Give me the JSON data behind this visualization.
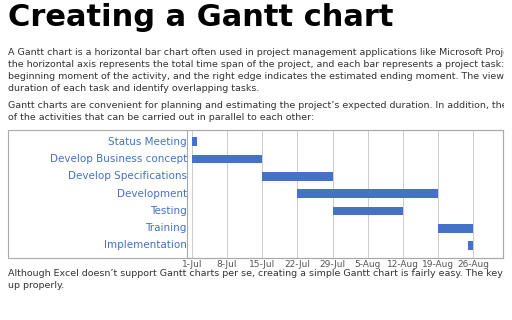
{
  "title": "Creating a Gantt chart",
  "title_fontsize": 22,
  "tasks": [
    "Status Meeting",
    "Develop Business concept",
    "Develop Specifications",
    "Development",
    "Testing",
    "Training",
    "Implementation"
  ],
  "start_days": [
    0,
    0,
    14,
    21,
    28,
    49,
    55
  ],
  "durations": [
    1,
    14,
    14,
    28,
    14,
    7,
    1
  ],
  "bar_color": "#4472C4",
  "bar_height": 0.5,
  "x_tick_labels": [
    "1-Jul",
    "8-Jul",
    "15-Jul",
    "22-Jul",
    "29-Jul",
    "5-Aug",
    "12-Aug",
    "19-Aug",
    "26-Aug"
  ],
  "x_tick_positions": [
    0,
    7,
    14,
    21,
    28,
    35,
    42,
    49,
    56
  ],
  "x_min": -1,
  "x_max": 62,
  "task_label_color": "#4472C4",
  "task_fontsize": 7.5,
  "axis_label_fontsize": 6.5,
  "chart_bg": "#ffffff",
  "border_color": "#aaaaaa",
  "grid_color": "#cccccc",
  "fig_bg": "#ffffff",
  "text_color": "#333333",
  "body_fontsize": 6.8,
  "para1_line1": "A Gantt chart is a horizontal bar chart often used in project management applications like Microsoft Project. In the Gantt chart,",
  "para1_line2": "the horizontal axis represents the total time span of the project, and each bar represents a project task: the left edge indicates the",
  "para1_line3": "beginning moment of the activity, and the right edge indicates the estimated ending moment. The viewer can quickly see the",
  "para1_line4": "duration of each task and identify overlapping tasks.",
  "para2_line1": "Gantt charts are convenient for planning and estimating the project’s expected duration. In addition, they allow you to keep track",
  "para2_line2": "of the activities that can be carried out in parallel to each other:",
  "para3_line1": "Although Excel doesn’t support Gantt charts per se, creating a simple Gantt chart is fairly easy. The key is getting your data set",
  "para3_line2": "up properly."
}
